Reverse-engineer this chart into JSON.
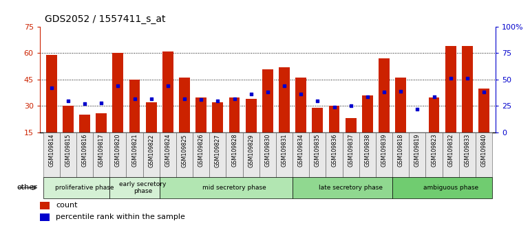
{
  "title": "GDS2052 / 1557411_s_at",
  "samples": [
    "GSM109814",
    "GSM109815",
    "GSM109816",
    "GSM109817",
    "GSM109820",
    "GSM109821",
    "GSM109822",
    "GSM109824",
    "GSM109825",
    "GSM109826",
    "GSM109827",
    "GSM109828",
    "GSM109829",
    "GSM109830",
    "GSM109831",
    "GSM109834",
    "GSM109835",
    "GSM109836",
    "GSM109837",
    "GSM109838",
    "GSM109839",
    "GSM109818",
    "GSM109819",
    "GSM109823",
    "GSM109832",
    "GSM109833",
    "GSM109840"
  ],
  "counts": [
    59,
    30,
    25,
    26,
    60,
    45,
    32,
    61,
    46,
    35,
    32,
    35,
    34,
    51,
    52,
    46,
    29,
    30,
    23,
    36,
    57,
    46,
    13,
    35,
    64,
    64,
    40
  ],
  "percentiles": [
    42,
    30,
    27,
    28,
    44,
    32,
    32,
    44,
    32,
    31,
    30,
    32,
    36,
    38,
    44,
    36,
    30,
    24,
    25,
    34,
    38,
    39,
    22,
    34,
    51,
    51,
    38
  ],
  "phases": [
    {
      "name": "proliferative phase",
      "start": 0,
      "end": 4,
      "color": "#d4f0d4"
    },
    {
      "name": "early secretory\nphase",
      "start": 4,
      "end": 7,
      "color": "#d4f0d4"
    },
    {
      "name": "mid secretory phase",
      "start": 7,
      "end": 15,
      "color": "#b2e6b2"
    },
    {
      "name": "late secretory phase",
      "start": 15,
      "end": 21,
      "color": "#90d890"
    },
    {
      "name": "ambiguous phase",
      "start": 21,
      "end": 27,
      "color": "#70cc70"
    }
  ],
  "ylim_left": [
    15,
    75
  ],
  "ylim_right": [
    0,
    100
  ],
  "yticks_left": [
    15,
    30,
    45,
    60,
    75
  ],
  "yticks_right": [
    0,
    25,
    50,
    75,
    100
  ],
  "bar_color": "#cc2200",
  "dot_color": "#0000cc",
  "title_fontsize": 10,
  "axis_color_left": "#cc2200",
  "axis_color_right": "#0000cc",
  "legend_entries": [
    "count",
    "percentile rank within the sample"
  ],
  "xlim": [
    -0.7,
    26.7
  ],
  "n_samples": 27
}
